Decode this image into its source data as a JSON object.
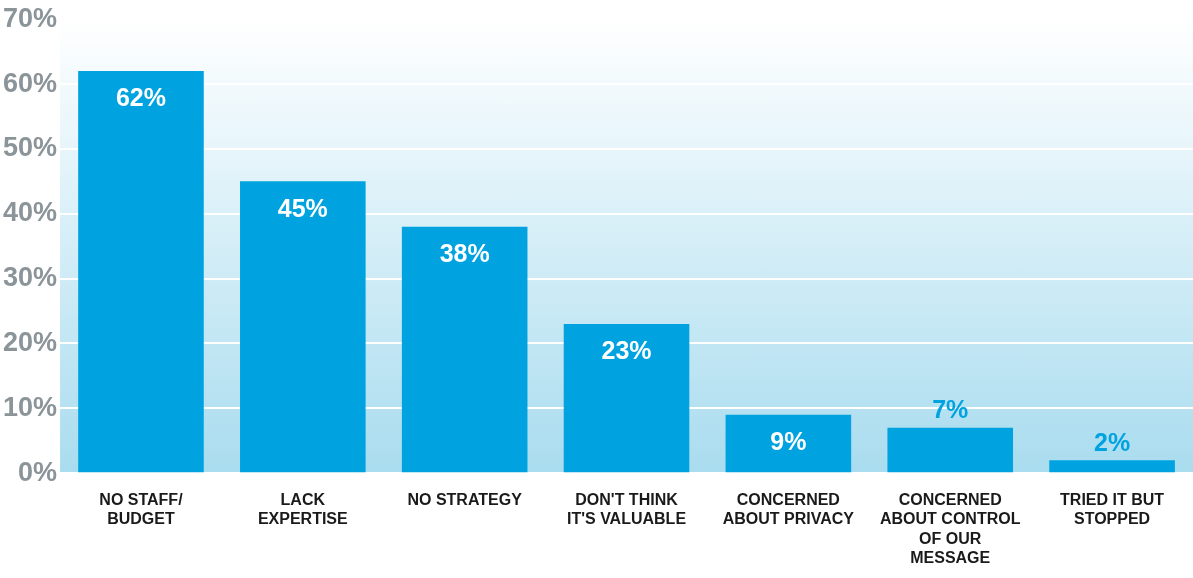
{
  "chart_data": {
    "type": "bar",
    "categories": [
      "NO STAFF/ BUDGET",
      "LACK EXPERTISE",
      "NO STRATEGY",
      "DON'T THINK IT'S VALUABLE",
      "CONCERNED ABOUT PRIVACY",
      "CONCERNED ABOUT CONTROL OF OUR MESSAGE",
      "TRIED IT BUT STOPPED"
    ],
    "values": [
      62,
      45,
      38,
      23,
      9,
      7,
      2
    ],
    "value_labels": [
      "62%",
      "45%",
      "38%",
      "23%",
      "9%",
      "7%",
      "2%"
    ],
    "color": "#00a3e0",
    "ylim": [
      0,
      70
    ],
    "yticks": [
      {
        "value": 0,
        "label": "0%"
      },
      {
        "value": 10,
        "label": "10%"
      },
      {
        "value": 20,
        "label": "20%"
      },
      {
        "value": 30,
        "label": "30%"
      },
      {
        "value": 40,
        "label": "40%"
      },
      {
        "value": 50,
        "label": "50%"
      },
      {
        "value": 60,
        "label": "60%"
      },
      {
        "value": 70,
        "label": "70%"
      }
    ],
    "grid": "y"
  }
}
